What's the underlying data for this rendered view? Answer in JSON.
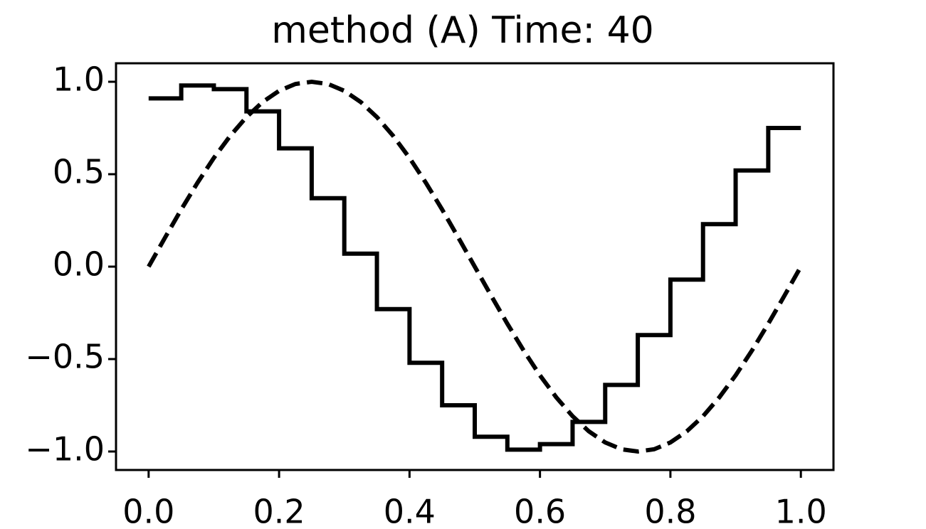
{
  "chart_data": {
    "type": "line",
    "title": "method (A)   Time: 40",
    "xlim": [
      -0.05,
      1.05
    ],
    "ylim": [
      -1.1,
      1.1
    ],
    "xticks": [
      {
        "value": 0,
        "label": "0.0"
      },
      {
        "value": 0.2,
        "label": "0.2"
      },
      {
        "value": 0.4,
        "label": "0.4"
      },
      {
        "value": 0.6,
        "label": "0.6"
      },
      {
        "value": 0.8,
        "label": "0.8"
      },
      {
        "value": 1,
        "label": "1.0"
      }
    ],
    "yticks": [
      {
        "value": -1,
        "label": "−1.0"
      },
      {
        "value": -0.5,
        "label": "−0.5"
      },
      {
        "value": 0,
        "label": "0.0"
      },
      {
        "value": 0.5,
        "label": "0.5"
      },
      {
        "value": 1,
        "label": "1.0"
      }
    ],
    "series": [
      {
        "color": "#000000",
        "style": "solid",
        "drawstyle": "steps-post",
        "x": [
          0,
          0.05,
          0.1,
          0.15,
          0.2,
          0.25,
          0.3,
          0.35,
          0.4,
          0.45,
          0.5,
          0.55,
          0.6,
          0.65,
          0.7,
          0.75,
          0.8,
          0.85,
          0.9,
          0.95,
          1.0
        ],
        "values": [
          0.91,
          0.98,
          0.96,
          0.84,
          0.64,
          0.37,
          0.07,
          -0.23,
          -0.52,
          -0.75,
          -0.92,
          -0.99,
          -0.96,
          -0.84,
          -0.64,
          -0.37,
          -0.07,
          0.23,
          0.52,
          0.75,
          0.75
        ]
      },
      {
        "color": "#000000",
        "style": "dashed",
        "drawstyle": "default",
        "x": [
          0,
          0.025,
          0.05,
          0.075,
          0.1,
          0.125,
          0.15,
          0.175,
          0.2,
          0.225,
          0.25,
          0.275,
          0.3,
          0.325,
          0.35,
          0.375,
          0.4,
          0.425,
          0.45,
          0.475,
          0.5,
          0.525,
          0.55,
          0.575,
          0.6,
          0.625,
          0.65,
          0.675,
          0.7,
          0.725,
          0.75,
          0.775,
          0.8,
          0.825,
          0.85,
          0.875,
          0.9,
          0.925,
          0.95,
          0.975,
          1.0
        ],
        "values": [
          0,
          0.156,
          0.309,
          0.454,
          0.588,
          0.707,
          0.809,
          0.891,
          0.951,
          0.988,
          1,
          0.988,
          0.951,
          0.891,
          0.809,
          0.707,
          0.588,
          0.454,
          0.309,
          0.156,
          0,
          -0.156,
          -0.309,
          -0.454,
          -0.588,
          -0.707,
          -0.809,
          -0.891,
          -0.951,
          -0.988,
          -1,
          -0.988,
          -0.951,
          -0.891,
          -0.809,
          -0.707,
          -0.588,
          -0.454,
          -0.309,
          -0.156,
          0
        ]
      }
    ]
  }
}
